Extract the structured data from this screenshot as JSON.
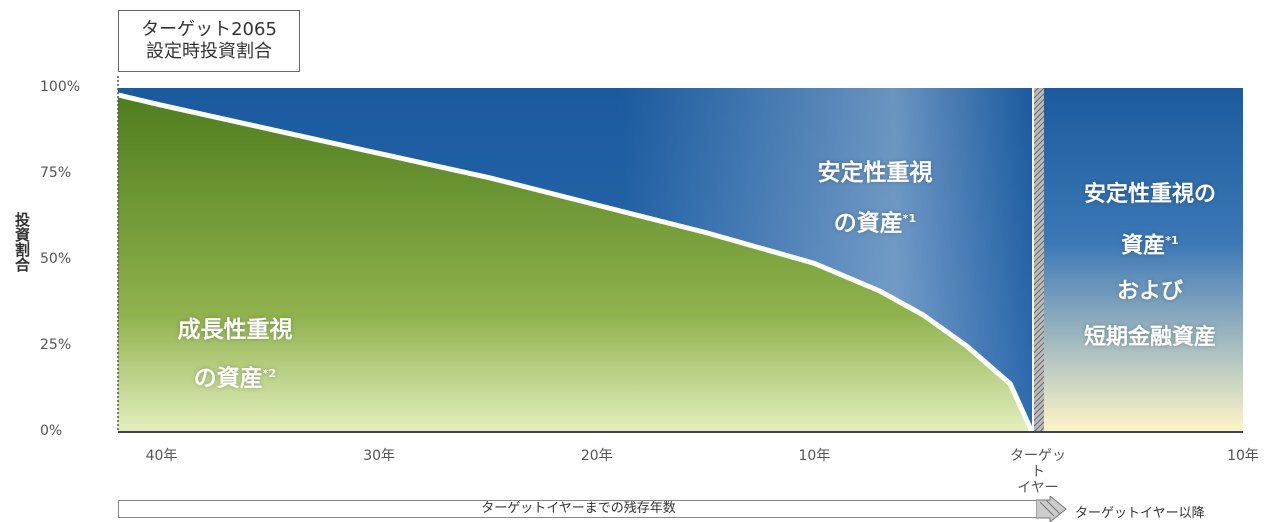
{
  "title_box": {
    "line1": "ターゲット2065",
    "line2": "設定時投資割合"
  },
  "y_axis_label": "投資割合",
  "regions": {
    "stable_upper": {
      "line1": "安定性重視",
      "line2": "の資産",
      "note": "*1"
    },
    "stable_after": {
      "line1": "安定性重視の",
      "line2": "資産",
      "note": "*1",
      "line3": "および",
      "line4": "短期金融資産"
    },
    "growth": {
      "line1": "成長性重視",
      "line2": "の資産",
      "note": "*2"
    }
  },
  "bottom": {
    "remaining_label": "ターゲットイヤーまでの残存年数",
    "after_label": "ターゲットイヤー以降"
  },
  "colors": {
    "stable": "#1e5fa3",
    "growth": "#5d8a2a",
    "after_fade": "#fff6c8"
  },
  "chart_data": {
    "type": "area",
    "title": "",
    "xlabel": "",
    "ylabel": "投資割合",
    "ylim": [
      0,
      100
    ],
    "y_ticks": [
      "100%",
      "75%",
      "50%",
      "25%",
      "0%"
    ],
    "x_ticks": [
      "40年",
      "30年",
      "20年",
      "10年",
      "ターゲット\nイヤー",
      "10年"
    ],
    "series": [
      {
        "name": "成長性重視の資産",
        "x": [
          42,
          40,
          35,
          30,
          25,
          20,
          15,
          10,
          7,
          5,
          3,
          1,
          0
        ],
        "values": [
          98,
          95,
          88,
          81,
          74,
          66,
          58,
          49,
          41,
          34,
          25,
          14,
          0
        ]
      }
    ]
  }
}
